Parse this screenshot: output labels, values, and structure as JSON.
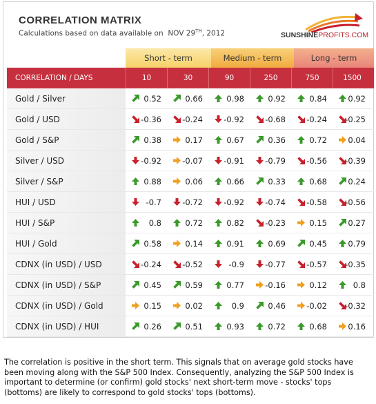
{
  "header": {
    "title": "CORRELATION MATRIX",
    "subtitle_prefix": "Calculations based on data available on",
    "date_main": "NOV 29",
    "date_sup": "TH",
    "date_year": ", 2012"
  },
  "logo": {
    "part1": "SUNSHINE",
    "part2": "PROFITS.COM"
  },
  "bands": {
    "short": "Short - term",
    "medium": "Medium - term",
    "long": "Long - term"
  },
  "columns": {
    "label": "CORRELATION / DAYS",
    "days": [
      "10",
      "30",
      "90",
      "250",
      "750",
      "1500"
    ]
  },
  "colors": {
    "up": "#3a9a2a",
    "down": "#c8202c",
    "flat": "#f0a01e",
    "header": "#c6303e"
  },
  "rows": [
    {
      "label": "Gold / Silver",
      "values": [
        "0.52",
        "0.66",
        "0.98",
        "0.92",
        "0.84",
        "0.92"
      ],
      "arrows": [
        "up-right",
        "up-right",
        "up",
        "up",
        "up",
        "up"
      ]
    },
    {
      "label": "Gold / USD",
      "values": [
        "-0.36",
        "-0.24",
        "-0.92",
        "-0.68",
        "-0.24",
        "-0.25"
      ],
      "arrows": [
        "down-right",
        "down-right",
        "down",
        "down-right",
        "down-right",
        "down-right"
      ]
    },
    {
      "label": "Gold / S&P",
      "values": [
        "0.38",
        "0.17",
        "0.67",
        "0.36",
        "0.72",
        "0.04"
      ],
      "arrows": [
        "up-right",
        "flat",
        "up",
        "up-right",
        "up",
        "flat"
      ]
    },
    {
      "label": "Silver / USD",
      "values": [
        "-0.92",
        "-0.07",
        "-0.91",
        "-0.79",
        "-0.56",
        "-0.39"
      ],
      "arrows": [
        "down",
        "flat",
        "down",
        "down",
        "down-right",
        "down-right"
      ]
    },
    {
      "label": "Silver / S&P",
      "values": [
        "0.88",
        "0.06",
        "0.66",
        "0.33",
        "0.68",
        "0.24"
      ],
      "arrows": [
        "up",
        "flat",
        "up",
        "up-right",
        "up",
        "up-right"
      ]
    },
    {
      "label": "HUI / USD",
      "values": [
        "-0.7",
        "-0.72",
        "-0.92",
        "-0.74",
        "-0.58",
        "-0.56"
      ],
      "arrows": [
        "down",
        "down",
        "down",
        "down",
        "down-right",
        "down-right"
      ]
    },
    {
      "label": "HUI / S&P",
      "values": [
        "0.8",
        "0.72",
        "0.82",
        "-0.23",
        "0.15",
        "0.27"
      ],
      "arrows": [
        "up",
        "up",
        "up",
        "down-right",
        "flat",
        "up-right"
      ]
    },
    {
      "label": "HUI / Gold",
      "values": [
        "0.58",
        "0.14",
        "0.91",
        "0.69",
        "0.45",
        "0.79"
      ],
      "arrows": [
        "up-right",
        "flat",
        "up",
        "up",
        "up-right",
        "up"
      ]
    },
    {
      "label": "CDNX (in USD) / USD",
      "values": [
        "-0.24",
        "-0.52",
        "-0.9",
        "-0.77",
        "-0.57",
        "-0.35"
      ],
      "arrows": [
        "down-right",
        "down-right",
        "down",
        "down",
        "down-right",
        "down-right"
      ]
    },
    {
      "label": "CDNX (in USD) / S&P",
      "values": [
        "0.45",
        "0.59",
        "0.77",
        "-0.16",
        "0.12",
        "0.8"
      ],
      "arrows": [
        "up-right",
        "up-right",
        "up",
        "flat",
        "flat",
        "up"
      ]
    },
    {
      "label": "CDNX (in USD) / Gold",
      "values": [
        "0.15",
        "0.02",
        "0.9",
        "0.46",
        "-0.02",
        "-0.32"
      ],
      "arrows": [
        "flat",
        "flat",
        "up",
        "up-right",
        "flat",
        "down-right"
      ]
    },
    {
      "label": "CDNX (in USD) / HUI",
      "values": [
        "0.26",
        "0.51",
        "0.93",
        "0.72",
        "0.68",
        "0.16"
      ],
      "arrows": [
        "up-right",
        "up-right",
        "up",
        "up",
        "up",
        "flat"
      ]
    }
  ],
  "footer": "The correlation is positive in the short term. This signals that on average gold stocks have been moving along with the S&P 500 Index. Consequently, analyzing the S&P 500 Index is important to determine (or confirm) gold stocks' next short-term move - stocks' tops (bottoms) are likely to correspond to gold stocks' tops (bottoms)."
}
